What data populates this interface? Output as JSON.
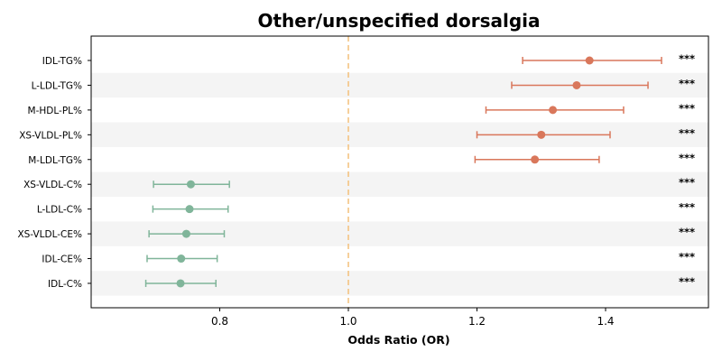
{
  "chart_data": {
    "type": "forest",
    "title": "Other/unspecified dorsalgia",
    "xlabel": "Odds Ratio (OR)",
    "xlim": [
      0.6,
      1.56
    ],
    "xticks": [
      0.8,
      1.0,
      1.2,
      1.4
    ],
    "xtick_labels": [
      "0.8",
      "1.0",
      "1.2",
      "1.4"
    ],
    "reference_line": 1.0,
    "grid": false,
    "colors": {
      "positive": "#d9775b",
      "negative": "#80b59a",
      "reference": "#f4c07a",
      "row_band": "#f4f4f4"
    },
    "rows": [
      {
        "label": "IDL-TG%",
        "or": 1.375,
        "lower": 1.271,
        "upper": 1.487,
        "sig": "***",
        "direction": "positive"
      },
      {
        "label": "L-LDL-TG%",
        "or": 1.355,
        "lower": 1.254,
        "upper": 1.466,
        "sig": "***",
        "direction": "positive"
      },
      {
        "label": "M-HDL-PL%",
        "or": 1.318,
        "lower": 1.214,
        "upper": 1.428,
        "sig": "***",
        "direction": "positive"
      },
      {
        "label": "XS-VLDL-PL%",
        "or": 1.3,
        "lower": 1.2,
        "upper": 1.407,
        "sig": "***",
        "direction": "positive"
      },
      {
        "label": "M-LDL-TG%",
        "or": 1.29,
        "lower": 1.197,
        "upper": 1.39,
        "sig": "***",
        "direction": "positive"
      },
      {
        "label": "XS-VLDL-C%",
        "or": 0.755,
        "lower": 0.697,
        "upper": 0.815,
        "sig": "***",
        "direction": "negative"
      },
      {
        "label": "L-LDL-C%",
        "or": 0.753,
        "lower": 0.696,
        "upper": 0.813,
        "sig": "***",
        "direction": "negative"
      },
      {
        "label": "XS-VLDL-CE%",
        "or": 0.748,
        "lower": 0.69,
        "upper": 0.807,
        "sig": "***",
        "direction": "negative"
      },
      {
        "label": "IDL-CE%",
        "or": 0.74,
        "lower": 0.687,
        "upper": 0.796,
        "sig": "***",
        "direction": "negative"
      },
      {
        "label": "IDL-C%",
        "or": 0.739,
        "lower": 0.685,
        "upper": 0.794,
        "sig": "***",
        "direction": "negative"
      }
    ]
  }
}
